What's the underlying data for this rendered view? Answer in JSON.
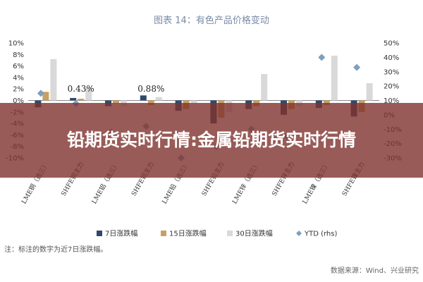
{
  "chart_data": {
    "type": "bar",
    "title": "图表 14：有色产品价格变动",
    "categories": [
      "LME铜（选三）",
      "SHFE铜主力",
      "LME铝（选三）",
      "SHFE铝主力",
      "LME铅（选三）",
      "SHFE铅主力",
      "LME锌（选三）",
      "SHFE锌主力",
      "LME镍（选三）",
      "SHFE镍主力"
    ],
    "series": [
      {
        "name": "7日涨跌幅",
        "color": "#2e4a6b",
        "axis": "left",
        "values": [
          -1.2,
          0.43,
          -1.0,
          0.88,
          -1.8,
          -4.0,
          -1.5,
          -2.5,
          -1.3,
          -2.8
        ]
      },
      {
        "name": "15日涨跌幅",
        "color": "#c8a064",
        "axis": "left",
        "values": [
          1.5,
          0.3,
          -0.5,
          -0.8,
          -1.5,
          -3.0,
          -1.0,
          -1.5,
          -0.8,
          -2.0
        ]
      },
      {
        "name": "30日涨跌幅",
        "color": "#d9d9d9",
        "axis": "left",
        "values": [
          7.2,
          2.3,
          -1.0,
          0.6,
          -0.5,
          -2.0,
          4.6,
          -1.0,
          7.8,
          3.0
        ]
      },
      {
        "name": "YTD (rhs)",
        "color": "#7f9fbf",
        "axis": "right",
        "marker": "diamond",
        "values": [
          15,
          8,
          -12,
          -8,
          -30,
          -22,
          -10,
          -15,
          40,
          33
        ]
      }
    ],
    "ylim_left": [
      -10,
      10
    ],
    "yticks_left": [
      "10%",
      "8%",
      "6%",
      "4%",
      "2%",
      "0%",
      "-2%",
      "-4%",
      "-6%",
      "-8%",
      "-10%"
    ],
    "ylim_right": [
      -30,
      50
    ],
    "yticks_right": [
      "50%",
      "40%",
      "30%",
      "20%",
      "10%",
      "0%",
      "-10%",
      "-20%",
      "-30%"
    ],
    "annotations": [
      {
        "category_index": 1,
        "text": "0.43%"
      },
      {
        "category_index": 3,
        "text": "0.88%"
      }
    ],
    "legend_position": "bottom",
    "grid": false
  },
  "note": "注：标注的数字为近7日涨跌幅。",
  "source": "数据来源：Wind、兴业研究",
  "overlay": {
    "text": "铅期货实时行情:金属铅期货实时行情"
  }
}
